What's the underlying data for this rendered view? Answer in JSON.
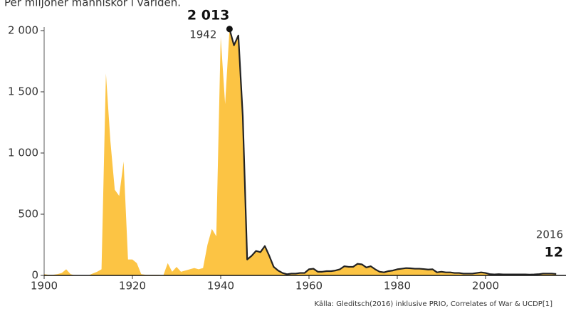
{
  "chart_data": {
    "type": "area",
    "title": "Per miljoner människor i världen.",
    "source": "Källa: Gleditsch(2016) inklusive PRIO, Correlates of War & UCDP[1]",
    "color": "#fcc444",
    "line_color": "#222222",
    "x": [
      1900,
      1901,
      1902,
      1903,
      1904,
      1905,
      1906,
      1907,
      1908,
      1909,
      1910,
      1911,
      1912,
      1913,
      1914,
      1915,
      1916,
      1917,
      1918,
      1919,
      1920,
      1921,
      1922,
      1923,
      1924,
      1925,
      1926,
      1927,
      1928,
      1929,
      1930,
      1931,
      1932,
      1933,
      1934,
      1935,
      1936,
      1937,
      1938,
      1939,
      1940,
      1941,
      1942,
      1943,
      1944,
      1945,
      1946,
      1947,
      1948,
      1949,
      1950,
      1951,
      1952,
      1953,
      1954,
      1955,
      1956,
      1957,
      1958,
      1959,
      1960,
      1961,
      1962,
      1963,
      1964,
      1965,
      1966,
      1967,
      1968,
      1969,
      1970,
      1971,
      1972,
      1973,
      1974,
      1975,
      1976,
      1977,
      1978,
      1979,
      1980,
      1981,
      1982,
      1983,
      1984,
      1985,
      1986,
      1987,
      1988,
      1989,
      1990,
      1991,
      1992,
      1993,
      1994,
      1995,
      1996,
      1997,
      1998,
      1999,
      2000,
      2001,
      2002,
      2003,
      2004,
      2005,
      2006,
      2007,
      2008,
      2009,
      2010,
      2011,
      2012,
      2013,
      2014,
      2015,
      2016
    ],
    "values": [
      10,
      5,
      5,
      10,
      20,
      50,
      10,
      0,
      0,
      0,
      0,
      15,
      30,
      50,
      1650,
      1100,
      700,
      650,
      930,
      130,
      130,
      100,
      10,
      5,
      5,
      5,
      5,
      0,
      100,
      30,
      70,
      30,
      40,
      50,
      60,
      50,
      60,
      250,
      380,
      320,
      1950,
      1400,
      2013,
      1880,
      1960,
      1300,
      130,
      160,
      200,
      190,
      240,
      160,
      70,
      40,
      20,
      10,
      15,
      15,
      20,
      20,
      50,
      55,
      30,
      30,
      35,
      35,
      40,
      50,
      75,
      70,
      70,
      95,
      90,
      65,
      75,
      50,
      30,
      25,
      35,
      40,
      50,
      55,
      60,
      58,
      55,
      55,
      52,
      48,
      50,
      25,
      30,
      25,
      25,
      20,
      20,
      15,
      15,
      15,
      20,
      25,
      20,
      10,
      8,
      10,
      8,
      8,
      8,
      8,
      8,
      8,
      7,
      8,
      10,
      15,
      15,
      15,
      12
    ],
    "xlim": [
      1900,
      2018
    ],
    "ylim": [
      0,
      2000
    ],
    "xticks": [
      1900,
      1920,
      1940,
      1960,
      1980,
      2000
    ],
    "yticks": [
      0,
      500,
      {
        "value": 1000,
        "label": "1 000"
      },
      {
        "value": 1500,
        "label": "1 500"
      },
      {
        "value": 2000,
        "label": "2 000"
      }
    ],
    "annotations": [
      {
        "x": 1942,
        "y": 2013,
        "label": "2 013"
      },
      {
        "x": 2016,
        "y": 12,
        "label": "12"
      }
    ]
  }
}
